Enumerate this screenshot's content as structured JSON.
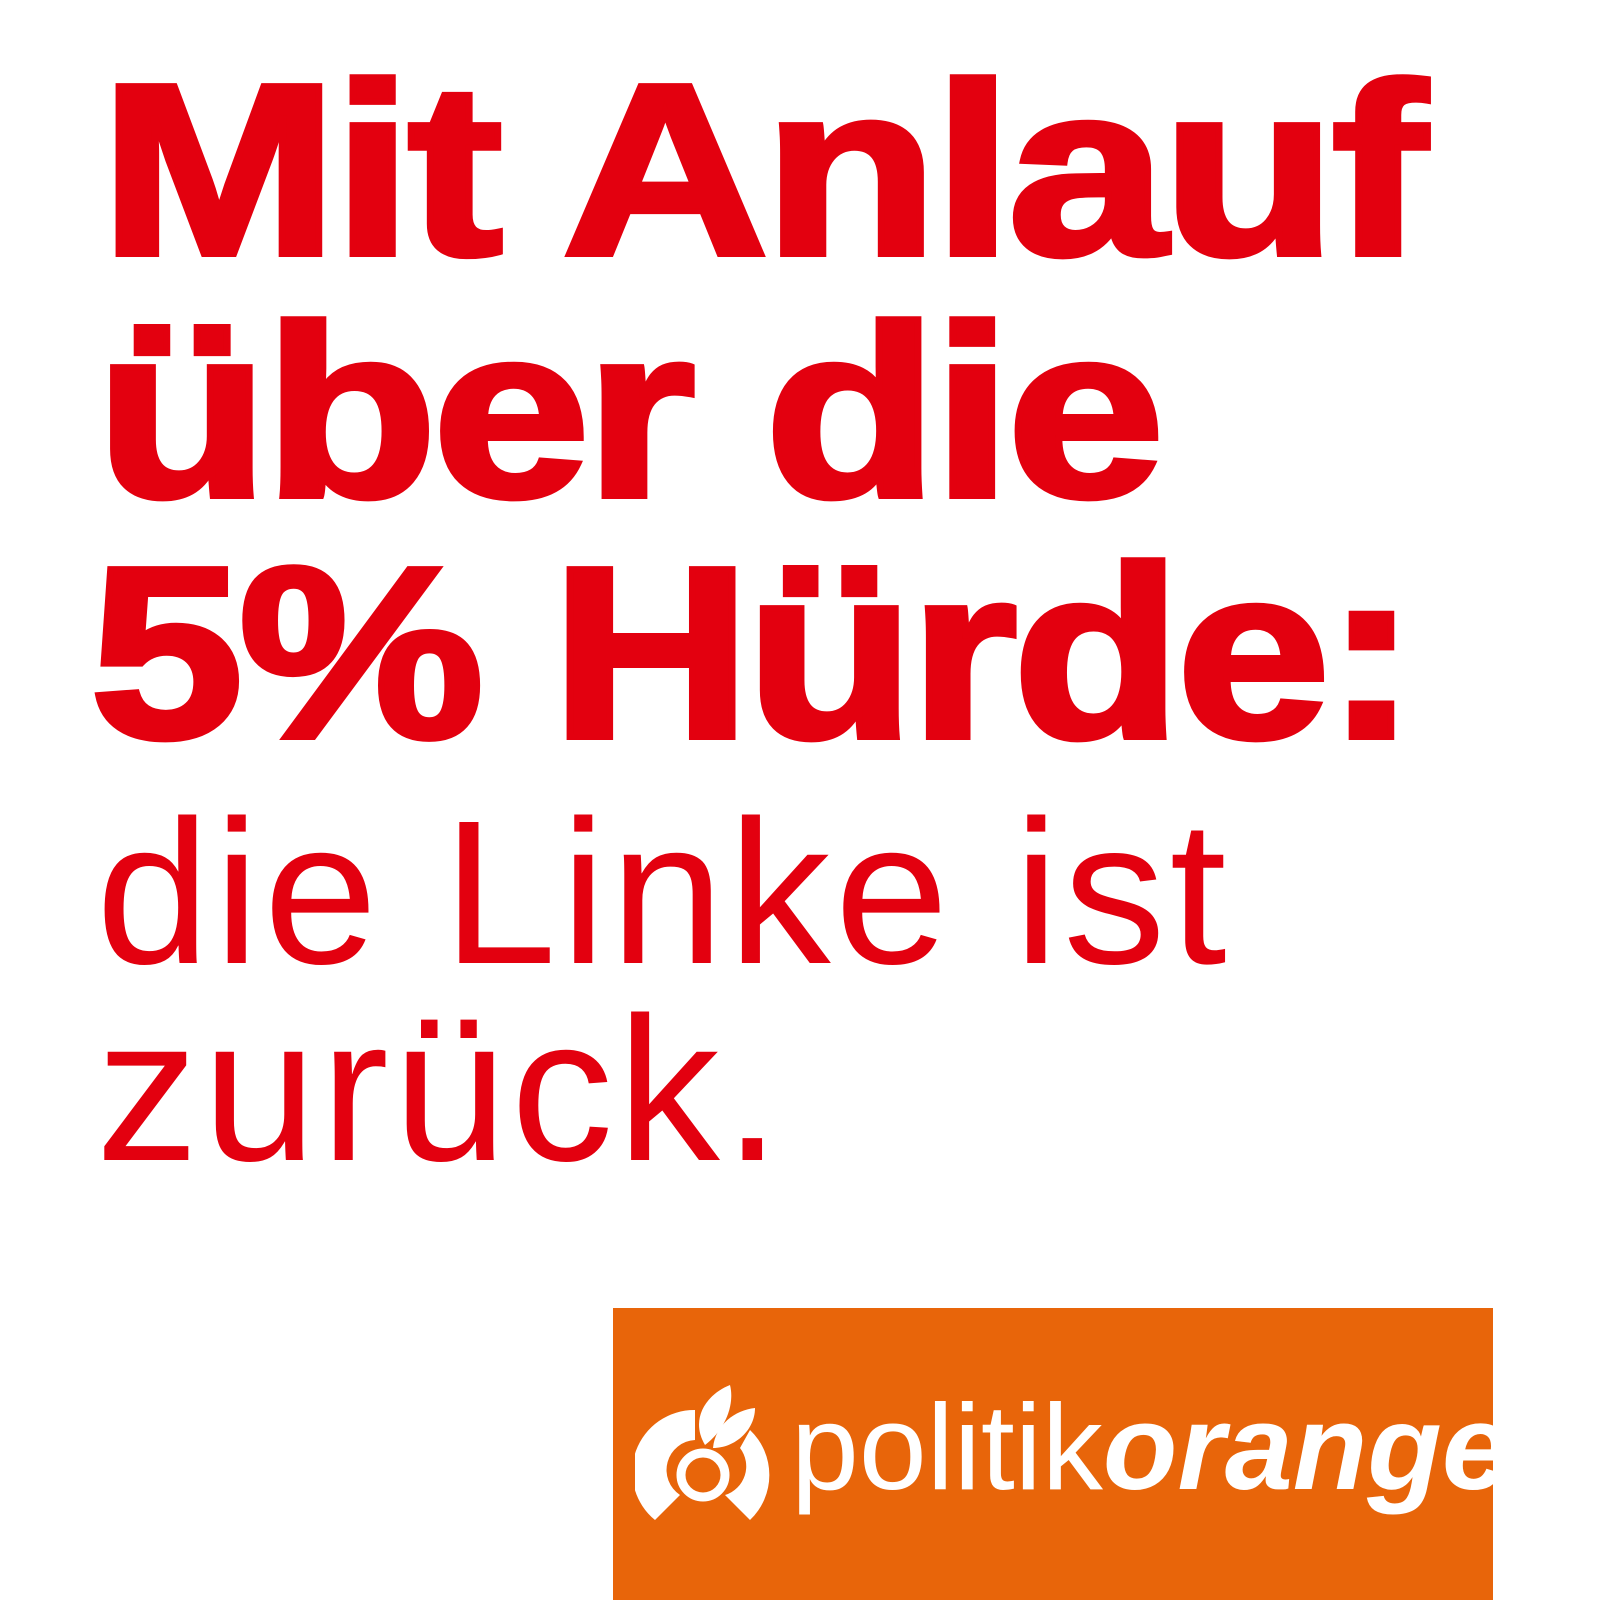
{
  "headline": {
    "line1": "Mit Anlauf",
    "line2": "über die",
    "line3": "5% Hürde:"
  },
  "subline": {
    "line1": "die Linke ist",
    "line2": "zurück."
  },
  "logo": {
    "part1": "politik",
    "part2": "orange",
    "icon": "orange-fruit-icon"
  },
  "colors": {
    "text": "#e3000f",
    "logo_background": "#e8650a",
    "background": "#ffffff"
  }
}
